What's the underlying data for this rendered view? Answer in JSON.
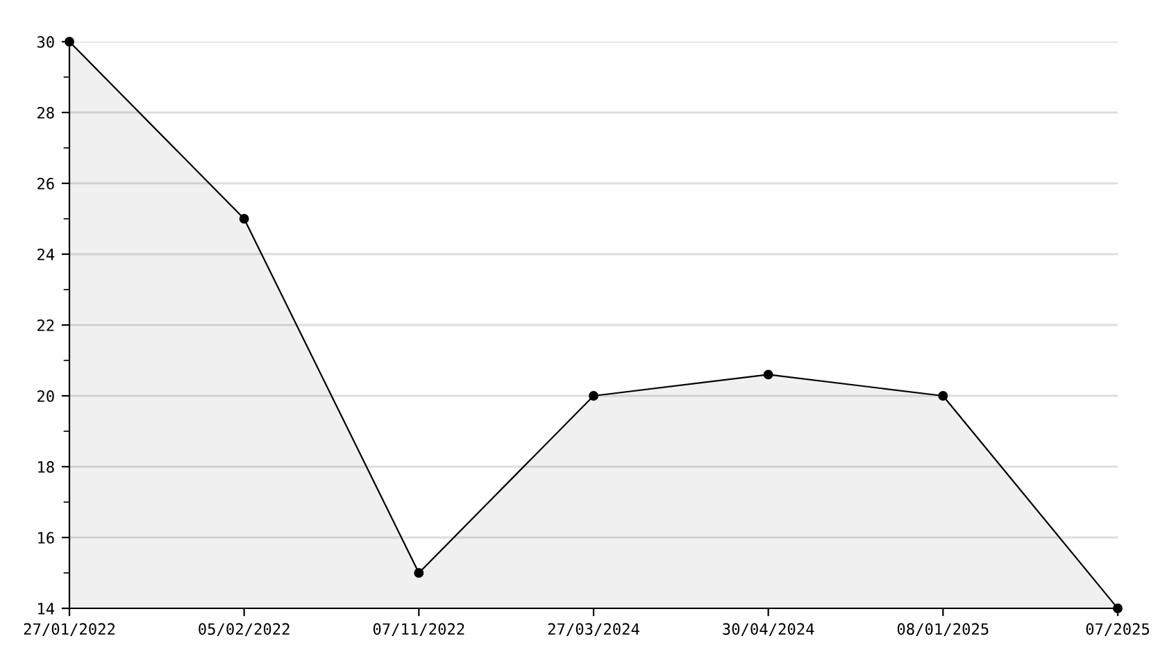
{
  "chart_data": {
    "type": "area",
    "categories": [
      "27/01/2022",
      "05/02/2022",
      "07/11/2022",
      "27/03/2024",
      "30/04/2024",
      "08/01/2025",
      "07/2025"
    ],
    "series": [
      {
        "color": "#000000",
        "values": [
          30,
          25,
          15,
          20,
          20.6,
          20,
          14
        ]
      }
    ],
    "ylim": [
      14,
      30
    ],
    "yticks": [
      14,
      {
        "value": 15,
        "label": null
      },
      16,
      {
        "value": 17,
        "label": null
      },
      18,
      {
        "value": 19,
        "label": null
      },
      20,
      {
        "value": 21,
        "label": null
      },
      22,
      {
        "value": 23,
        "label": null
      },
      24,
      {
        "value": 25,
        "label": null
      },
      26,
      {
        "value": 27,
        "label": null
      },
      28,
      {
        "value": 29,
        "label": null
      },
      30
    ],
    "grid": "y",
    "marker": "circle",
    "line_style": "solid",
    "legend": false
  }
}
